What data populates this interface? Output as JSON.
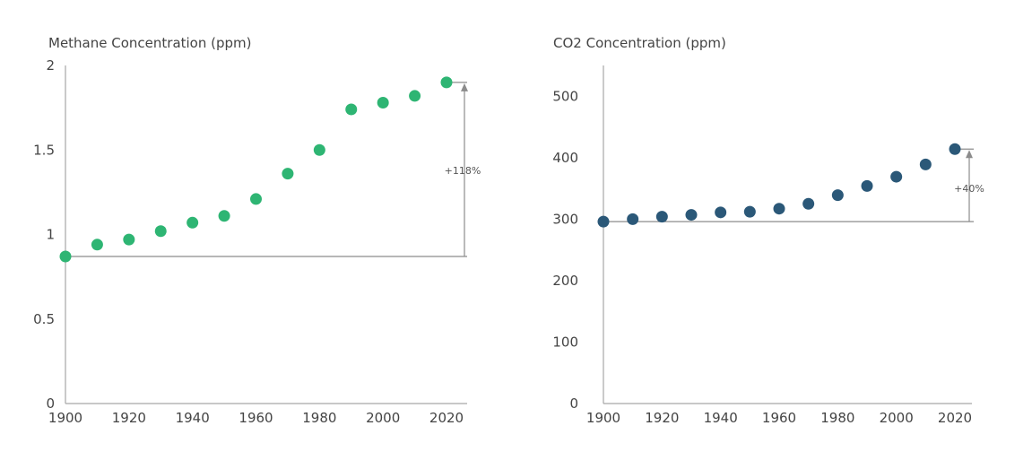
{
  "chart_data": [
    {
      "type": "scatter",
      "title": "Methane Concentration (ppm)",
      "xlabel": "",
      "ylabel": "",
      "x": [
        1900,
        1910,
        1920,
        1930,
        1940,
        1950,
        1960,
        1970,
        1980,
        1990,
        2000,
        2010,
        2020
      ],
      "y": [
        0.87,
        0.94,
        0.97,
        1.02,
        1.07,
        1.11,
        1.21,
        1.36,
        1.5,
        1.74,
        1.78,
        1.82,
        1.9
      ],
      "xlim": [
        1900,
        2020
      ],
      "ylim": [
        0,
        2
      ],
      "x_ticks": [
        "1900",
        "1920",
        "1940",
        "1960",
        "1980",
        "2000",
        "2020"
      ],
      "y_ticks": [
        "0",
        "0.5",
        "1",
        "1.5",
        "2"
      ],
      "color": "#2eb573",
      "annotation": {
        "label": "+118%",
        "from": 0.87,
        "to": 1.9
      },
      "grid": false,
      "legend": "none"
    },
    {
      "type": "scatter",
      "title": "CO2 Concentration (ppm)",
      "xlabel": "",
      "ylabel": "",
      "x": [
        1900,
        1910,
        1920,
        1930,
        1940,
        1950,
        1960,
        1970,
        1980,
        1990,
        2000,
        2010,
        2020
      ],
      "y": [
        296,
        300,
        304,
        307,
        311,
        312,
        317,
        325,
        339,
        354,
        369,
        389,
        414
      ],
      "xlim": [
        1900,
        2020
      ],
      "ylim": [
        0,
        550
      ],
      "x_ticks": [
        "1900",
        "1920",
        "1940",
        "1960",
        "1980",
        "2000",
        "2020"
      ],
      "y_ticks": [
        "0",
        "100",
        "200",
        "300",
        "400",
        "500"
      ],
      "color": "#2b5878",
      "annotation": {
        "label": "+40%",
        "from": 296,
        "to": 414
      },
      "grid": false,
      "legend": "none"
    }
  ]
}
